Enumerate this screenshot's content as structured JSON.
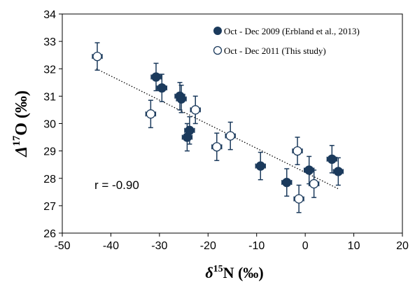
{
  "chart_data": {
    "type": "scatter",
    "xlabel": {
      "symbol": "δ",
      "superscript": "15",
      "rest": "N (‰)"
    },
    "ylabel": {
      "symbol": "Δ",
      "superscript": "17",
      "rest": "O (‰)"
    },
    "xlim": [
      -50,
      20
    ],
    "ylim": [
      26,
      34
    ],
    "xticks": [
      -50,
      -40,
      -30,
      -20,
      -10,
      0,
      10,
      20
    ],
    "yticks": [
      26,
      27,
      28,
      29,
      30,
      31,
      32,
      33,
      34
    ],
    "grid": false,
    "legend_position": "top-right",
    "series": [
      {
        "name": "Oct - Dec 2009 (Erbland et al., 2013)",
        "marker": "filled-circle",
        "color": "#1b3a5c",
        "points": [
          {
            "x": -30.7,
            "y": 31.7,
            "xerr": 1.0,
            "yerr": 0.5
          },
          {
            "x": -29.5,
            "y": 31.3,
            "xerr": 1.0,
            "yerr": 0.5
          },
          {
            "x": -25.8,
            "y": 31.0,
            "xerr": 1.0,
            "yerr": 0.5
          },
          {
            "x": -25.5,
            "y": 30.9,
            "xerr": 1.0,
            "yerr": 0.5
          },
          {
            "x": -23.8,
            "y": 29.75,
            "xerr": 1.0,
            "yerr": 0.5
          },
          {
            "x": -24.3,
            "y": 29.5,
            "xerr": 1.0,
            "yerr": 0.5
          },
          {
            "x": -9.2,
            "y": 28.45,
            "xerr": 1.0,
            "yerr": 0.5
          },
          {
            "x": -3.8,
            "y": 27.85,
            "xerr": 1.0,
            "yerr": 0.5
          },
          {
            "x": 0.8,
            "y": 28.3,
            "xerr": 1.0,
            "yerr": 0.5
          },
          {
            "x": 5.5,
            "y": 28.7,
            "xerr": 1.0,
            "yerr": 0.5
          },
          {
            "x": 6.8,
            "y": 28.25,
            "xerr": 1.0,
            "yerr": 0.5
          }
        ]
      },
      {
        "name": "Oct - Dec 2011 (This study)",
        "marker": "open-circle",
        "color": "#1b3a5c",
        "points": [
          {
            "x": -42.8,
            "y": 32.45,
            "xerr": 1.0,
            "yerr": 0.5
          },
          {
            "x": -31.8,
            "y": 30.35,
            "xerr": 1.0,
            "yerr": 0.5
          },
          {
            "x": -22.6,
            "y": 30.5,
            "xerr": 1.0,
            "yerr": 0.5
          },
          {
            "x": -18.2,
            "y": 29.15,
            "xerr": 1.0,
            "yerr": 0.5
          },
          {
            "x": -15.4,
            "y": 29.55,
            "xerr": 1.0,
            "yerr": 0.5
          },
          {
            "x": -1.6,
            "y": 29.0,
            "xerr": 1.0,
            "yerr": 0.5
          },
          {
            "x": -1.3,
            "y": 27.25,
            "xerr": 1.0,
            "yerr": 0.5
          },
          {
            "x": 1.8,
            "y": 27.8,
            "xerr": 1.0,
            "yerr": 0.5
          }
        ]
      }
    ],
    "trendline": {
      "style": "dotted",
      "x": [
        -43,
        7
      ],
      "y": [
        32.0,
        27.6
      ]
    },
    "annotation": "r = -0.90"
  }
}
